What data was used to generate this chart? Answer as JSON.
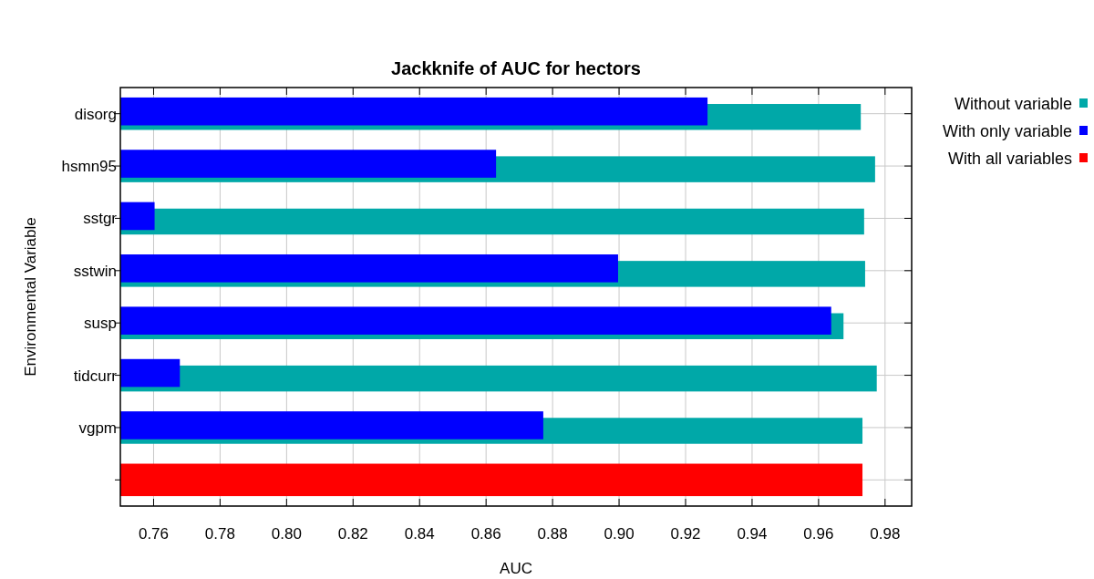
{
  "chart_data": {
    "type": "bar",
    "orientation": "horizontal",
    "title": "Jackknife of AUC for hectors",
    "xlabel": "AUC",
    "ylabel": "Environmental Variable",
    "categories": [
      "disorg",
      "hsmn95",
      "sstgr",
      "sstwin",
      "susp",
      "tidcurr",
      "vgpm",
      null
    ],
    "series": [
      {
        "name": "Without variable",
        "color": "#00a8a8",
        "values": [
          0.9727,
          0.977,
          0.9737,
          0.974,
          0.9675,
          0.9775,
          0.9732,
          null
        ]
      },
      {
        "name": "With only variable",
        "color": "#0000ff",
        "values": [
          0.9266,
          0.863,
          0.7603,
          0.8997,
          0.9638,
          0.7679,
          0.8772,
          null
        ]
      },
      {
        "name": "With all variables",
        "color": "#ff0000",
        "values": [
          null,
          null,
          null,
          null,
          null,
          null,
          null,
          0.9732
        ]
      }
    ],
    "xlim": [
      0.75,
      0.988
    ],
    "xticks": [
      0.76,
      0.78,
      "0.80",
      0.82,
      0.84,
      0.86,
      0.88,
      "0.90",
      0.92,
      0.94,
      0.96,
      0.98
    ],
    "grid": true,
    "legend": "right"
  }
}
